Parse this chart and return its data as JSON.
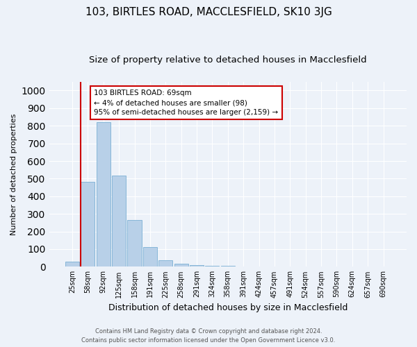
{
  "title1": "103, BIRTLES ROAD, MACCLESFIELD, SK10 3JG",
  "title2": "Size of property relative to detached houses in Macclesfield",
  "xlabel": "Distribution of detached houses by size in Macclesfield",
  "ylabel": "Number of detached properties",
  "categories": [
    "25sqm",
    "58sqm",
    "92sqm",
    "125sqm",
    "158sqm",
    "191sqm",
    "225sqm",
    "258sqm",
    "291sqm",
    "324sqm",
    "358sqm",
    "391sqm",
    "424sqm",
    "457sqm",
    "491sqm",
    "524sqm",
    "557sqm",
    "590sqm",
    "624sqm",
    "657sqm",
    "690sqm"
  ],
  "values": [
    28,
    480,
    820,
    517,
    265,
    110,
    35,
    18,
    10,
    5,
    5,
    0,
    0,
    0,
    0,
    0,
    0,
    0,
    0,
    0,
    0
  ],
  "bar_color": "#b8d0e8",
  "bar_edge_color": "#7aafd4",
  "highlight_line_color": "#cc0000",
  "annotation_text": "103 BIRTLES ROAD: 69sqm\n← 4% of detached houses are smaller (98)\n95% of semi-detached houses are larger (2,159) →",
  "annotation_box_color": "#ffffff",
  "annotation_box_edge": "#cc0000",
  "background_color": "#edf2f9",
  "grid_color": "#ffffff",
  "footer1": "Contains HM Land Registry data © Crown copyright and database right 2024.",
  "footer2": "Contains public sector information licensed under the Open Government Licence v3.0.",
  "ylim": [
    0,
    1050
  ],
  "title1_fontsize": 11,
  "title2_fontsize": 9.5,
  "xlabel_fontsize": 9,
  "ylabel_fontsize": 8,
  "tick_fontsize": 7,
  "footer_fontsize": 6,
  "annotation_fontsize": 7.5
}
